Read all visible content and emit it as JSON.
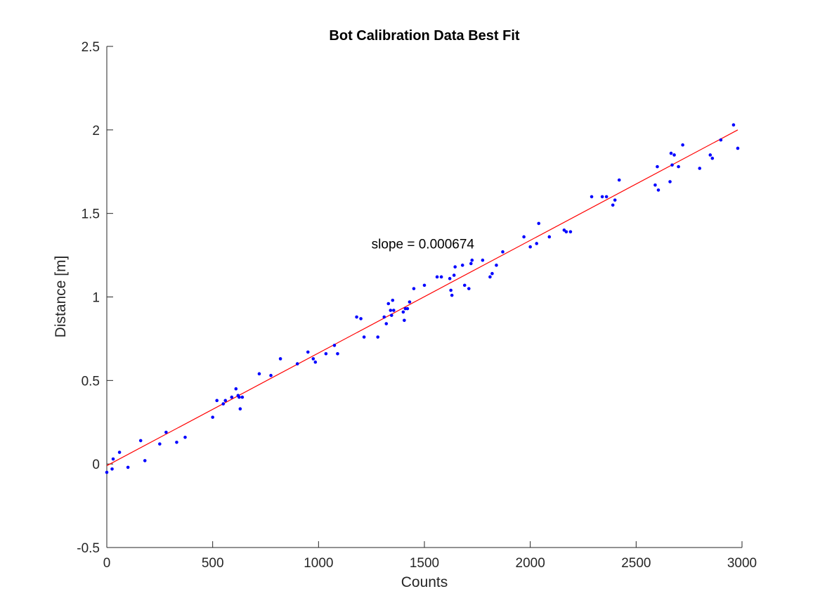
{
  "chart_data": {
    "type": "scatter",
    "title": "Bot Calibration Data Best Fit",
    "xlabel": "Counts",
    "ylabel": "Distance [m]",
    "xlim": [
      0,
      3000
    ],
    "ylim": [
      -0.5,
      2.5
    ],
    "xticks": [
      "0",
      "500",
      "1000",
      "1500",
      "2000",
      "2500",
      "3000"
    ],
    "yticks": [
      "-0.5",
      "0",
      "0.5",
      "1",
      "1.5",
      "2",
      "2.5"
    ],
    "xtick_values": [
      0,
      500,
      1000,
      1500,
      2000,
      2500,
      3000
    ],
    "ytick_values": [
      -0.5,
      0,
      0.5,
      1,
      1.5,
      2,
      2.5
    ],
    "grid": false,
    "annotation": {
      "text": "slope = 0.000674",
      "x": 1250,
      "y": 1.29
    },
    "colors": {
      "points": "#0000ff",
      "fit_line": "#ff0000",
      "axes": "#262626"
    },
    "series": [
      {
        "type": "scatter",
        "x": [
          0,
          25,
          30,
          60,
          100,
          160,
          180,
          250,
          280,
          330,
          370,
          500,
          520,
          550,
          560,
          590,
          610,
          620,
          625,
          630,
          640,
          720,
          775,
          820,
          900,
          950,
          975,
          985,
          1035,
          1075,
          1090,
          1180,
          1200,
          1215,
          1280,
          1310,
          1320,
          1330,
          1340,
          1345,
          1350,
          1355,
          1400,
          1405,
          1410,
          1420,
          1430,
          1450,
          1500,
          1560,
          1580,
          1620,
          1625,
          1630,
          1640,
          1645,
          1680,
          1690,
          1710,
          1720,
          1725,
          1775,
          1810,
          1820,
          1840,
          1870,
          1970,
          2000,
          2030,
          2040,
          2090,
          2160,
          2170,
          2190,
          2290,
          2340,
          2360,
          2390,
          2400,
          2420,
          2590,
          2600,
          2605,
          2660,
          2665,
          2670,
          2680,
          2700,
          2720,
          2800,
          2850,
          2860,
          2900,
          2960,
          2980
        ],
        "y": [
          -0.05,
          -0.03,
          0.03,
          0.07,
          -0.02,
          0.14,
          0.02,
          0.12,
          0.19,
          0.13,
          0.16,
          0.28,
          0.38,
          0.36,
          0.38,
          0.4,
          0.45,
          0.41,
          0.4,
          0.33,
          0.4,
          0.54,
          0.53,
          0.63,
          0.6,
          0.67,
          0.63,
          0.61,
          0.66,
          0.71,
          0.66,
          0.88,
          0.87,
          0.76,
          0.76,
          0.88,
          0.84,
          0.96,
          0.92,
          0.89,
          0.98,
          0.92,
          0.91,
          0.86,
          0.93,
          0.93,
          0.97,
          1.05,
          1.07,
          1.12,
          1.12,
          1.11,
          1.04,
          1.01,
          1.13,
          1.18,
          1.19,
          1.07,
          1.05,
          1.2,
          1.22,
          1.22,
          1.12,
          1.14,
          1.19,
          1.27,
          1.36,
          1.3,
          1.32,
          1.44,
          1.36,
          1.4,
          1.39,
          1.39,
          1.6,
          1.6,
          1.6,
          1.55,
          1.58,
          1.7,
          1.67,
          1.78,
          1.64,
          1.69,
          1.86,
          1.79,
          1.85,
          1.78,
          1.91,
          1.77,
          1.85,
          1.83,
          1.94,
          2.03,
          1.89
        ]
      },
      {
        "type": "line",
        "x": [
          0,
          2980
        ],
        "y": [
          -0.01,
          2.0
        ]
      }
    ]
  }
}
